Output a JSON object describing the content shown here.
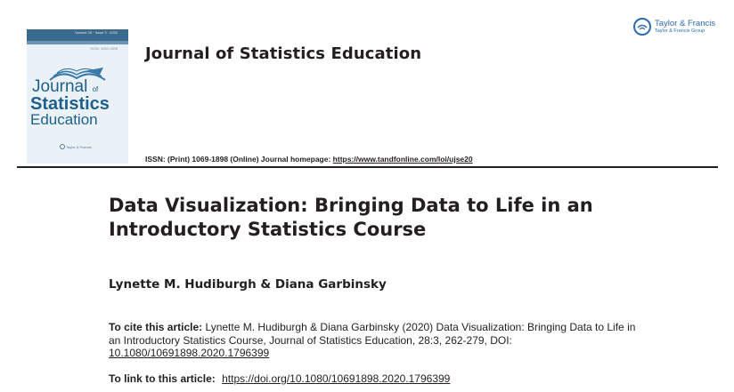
{
  "cover": {
    "bar_text": "Volume 28 · Issue 3 · 2020",
    "vol_text": "ISSN: 1069-1898",
    "title_line1": "Journal",
    "title_of": "of",
    "title_line2": "Statistics",
    "title_line3": "Education",
    "publisher": "Taylor & Francis",
    "colors": {
      "accent": "#1f5f8c",
      "bar": "#3b6a8f",
      "background": "#eaf2f7"
    }
  },
  "journal_title": "Journal of Statistics Education",
  "publisher_logo": {
    "name": "Taylor & Francis",
    "group": "Taylor & Francis Group",
    "icon": "taylor-francis-logo-icon",
    "color": "#2b6cb0"
  },
  "issn": {
    "label": "ISSN: (Print) 1069-1898 (Online) Journal homepage: ",
    "homepage_url": "https://www.tandfonline.com/loi/ujse20"
  },
  "article": {
    "title": "Data Visualization: Bringing Data to Life in an Introductory Statistics Course",
    "authors": "Lynette M. Hudiburgh & Diana Garbinsky"
  },
  "citation": {
    "label": "To cite this article:",
    "text": " Lynette M. Hudiburgh & Diana Garbinsky (2020) Data Visualization: Bringing Data to Life in an Introductory Statistics Course, Journal of Statistics Education, 28:3, 262-279, DOI: ",
    "doi": "10.1080/10691898.2020.1796399"
  },
  "link": {
    "label": "To link to this article: ",
    "url": "https://doi.org/10.1080/10691898.2020.1796399"
  }
}
